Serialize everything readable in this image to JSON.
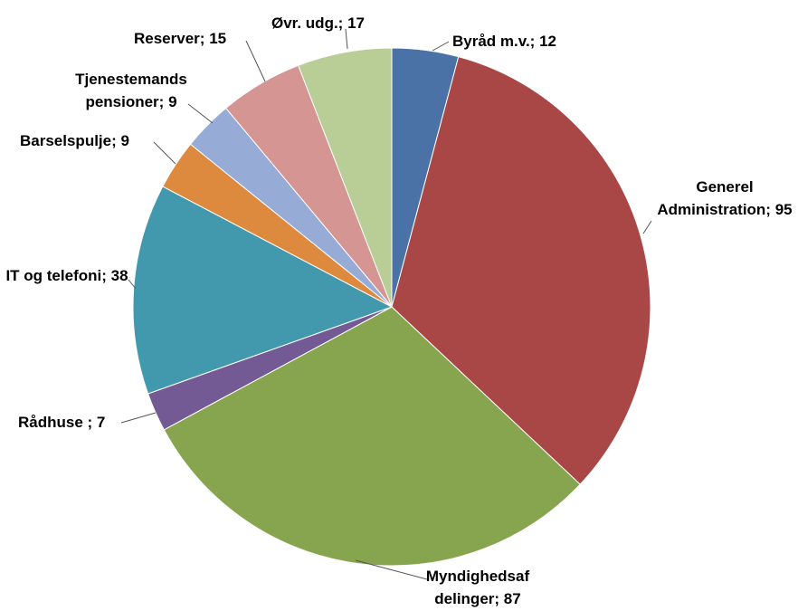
{
  "chart_data": {
    "type": "pie",
    "categories": [
      "Byråd m.v.;",
      "Generel Administration;",
      "Myndighedsafdelinger;",
      "Rådhuse ;",
      "IT og telefoni;",
      "Barselspulje;",
      "Tjenestemands pensioner;",
      "Reserver;",
      "Øvr. udg.;"
    ],
    "values": [
      12,
      95,
      87,
      7,
      38,
      9,
      9,
      15,
      17
    ],
    "colors": [
      "#4a72a6",
      "#a84746",
      "#87a54f",
      "#735a94",
      "#4299ae",
      "#dd8a3e",
      "#96abd6",
      "#d49593",
      "#b9cd96"
    ]
  }
}
